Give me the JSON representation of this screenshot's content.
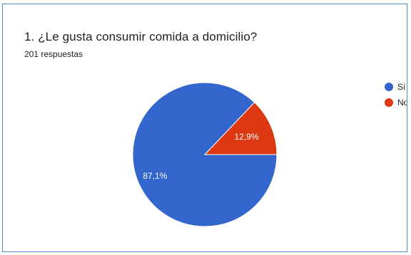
{
  "question": {
    "title": "1. ¿Le gusta consumir comida a domicilio?",
    "responses": "201 respuestas"
  },
  "chart_data": {
    "type": "pie",
    "title": "1. ¿Le gusta consumir comida a domicilio?",
    "subtitle": "201 respuestas",
    "categories": [
      "Sí",
      "No"
    ],
    "values": [
      87.1,
      12.9
    ],
    "labels": [
      "87,1%",
      "12,9%"
    ],
    "colors": [
      "#3366cc",
      "#dc3912"
    ],
    "legend_placement": "right"
  }
}
